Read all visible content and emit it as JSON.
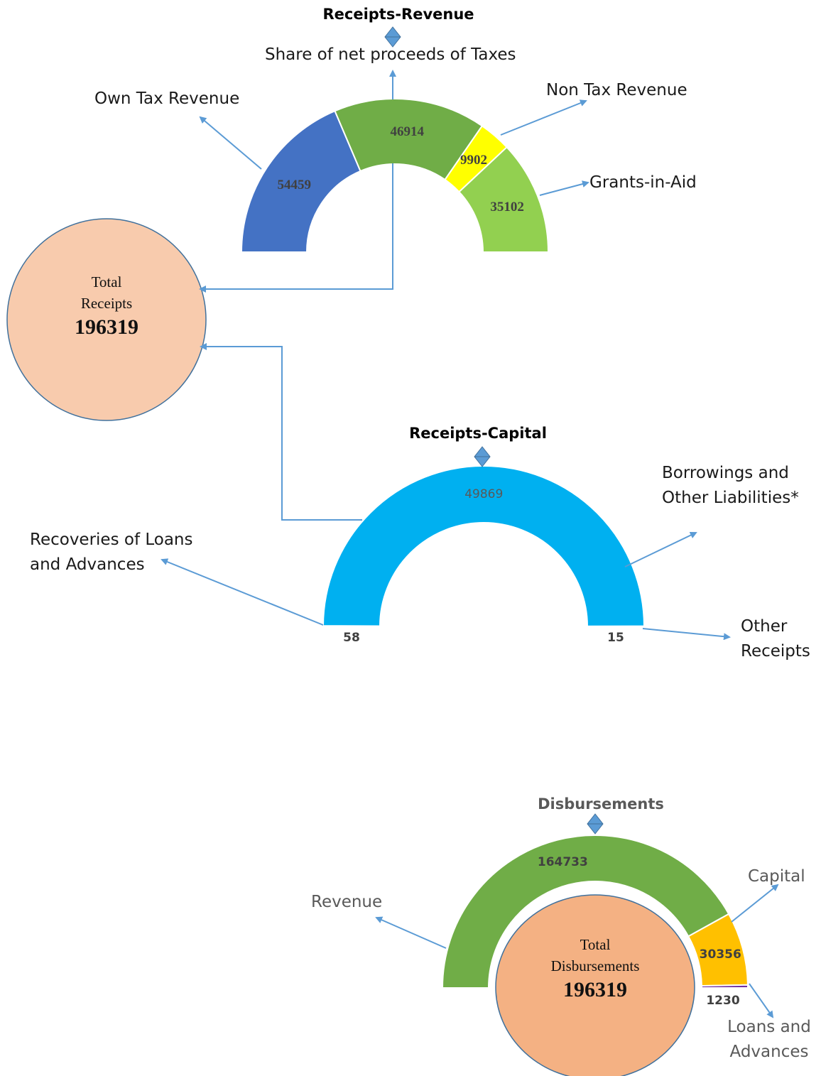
{
  "chart_data": [
    {
      "type": "half-donut",
      "title": "Receipts-Revenue",
      "categories": [
        "Own Tax Revenue",
        "Share of net proceeds of Taxes",
        "Non Tax Revenue",
        "Grants-in-Aid"
      ],
      "values": [
        54459,
        46914,
        9902,
        35102
      ],
      "colors": [
        "#4472c4",
        "#70ad47",
        "#ffff00",
        "#92d050"
      ],
      "center_label": "Total Receipts",
      "center_value": 196319
    },
    {
      "type": "half-donut",
      "title": "Receipts-Capital",
      "categories": [
        "Recoveries of Loans and Advances",
        "Borrowings and Other Liabilities*",
        "Other Receipts"
      ],
      "values": [
        58,
        49869,
        15
      ],
      "colors": [
        "#ffc000",
        "#00b0f0",
        "#ffffff"
      ]
    },
    {
      "type": "half-donut",
      "title": "Disbursements",
      "categories": [
        "Revenue",
        "Capital",
        "Loans and Advances"
      ],
      "values": [
        164733,
        30356,
        1230
      ],
      "colors": [
        "#70ad47",
        "#ffc000",
        "#7030a0"
      ],
      "center_label": "Total Disbursements",
      "center_value": 196319
    }
  ]
}
